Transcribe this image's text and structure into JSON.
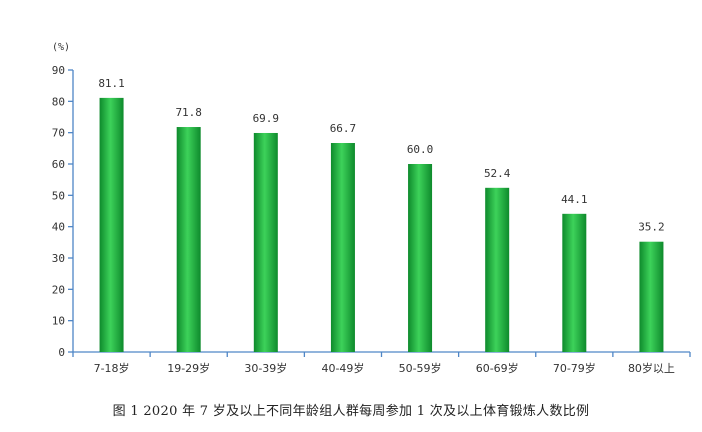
{
  "caption": "图 1   2020 年 7 岁及以上不同年龄组人群每周参加 1 次及以上体育锻炼人数比例",
  "colors": {
    "bar_dark": "#0e8a2c",
    "bar_light": "#3dd25a",
    "axis": "#4f86c6"
  },
  "chart_data": {
    "type": "bar",
    "title": "",
    "ylabel": "(%)",
    "xlabel": "",
    "ylim": [
      0,
      90
    ],
    "yticks": [
      0,
      10,
      20,
      30,
      40,
      50,
      60,
      70,
      80,
      90
    ],
    "categories": [
      "7-18岁",
      "19-29岁",
      "30-39岁",
      "40-49岁",
      "50-59岁",
      "60-69岁",
      "70-79岁",
      "80岁以上"
    ],
    "values": [
      81.1,
      71.8,
      69.9,
      66.7,
      60.0,
      52.4,
      44.1,
      35.2
    ],
    "value_labels": [
      "81.1",
      "71.8",
      "69.9",
      "66.7",
      "60.0",
      "52.4",
      "44.1",
      "35.2"
    ],
    "grid": false,
    "legend": "none"
  }
}
